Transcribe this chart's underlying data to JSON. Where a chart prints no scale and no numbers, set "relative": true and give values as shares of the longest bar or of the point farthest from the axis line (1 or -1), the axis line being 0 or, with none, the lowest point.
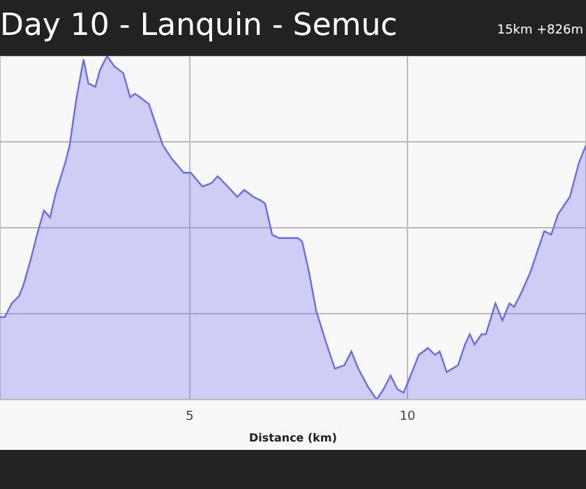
{
  "chart_data": {
    "type": "area",
    "title": "Day 10 - Lanquin - Semuc",
    "subtitle": "15km +826m",
    "xlabel": "Distance (km)",
    "relative": true,
    "grid": true,
    "xlim": [
      0.64,
      14.1
    ],
    "xticks": [
      5,
      10
    ],
    "x": [
      0.64,
      0.75,
      0.91,
      1.07,
      1.17,
      1.33,
      1.49,
      1.65,
      1.79,
      1.92,
      2.14,
      2.24,
      2.4,
      2.56,
      2.67,
      2.83,
      2.94,
      3.1,
      3.26,
      3.47,
      3.63,
      3.74,
      3.85,
      4.06,
      4.22,
      4.38,
      4.59,
      4.86,
      5.02,
      5.29,
      5.5,
      5.64,
      5.87,
      6.09,
      6.25,
      6.46,
      6.62,
      6.73,
      6.89,
      7.05,
      7.16,
      7.37,
      7.48,
      7.58,
      7.74,
      7.9,
      8.12,
      8.33,
      8.55,
      8.71,
      8.87,
      9.08,
      9.29,
      9.45,
      9.61,
      9.77,
      9.91,
      10.04,
      10.26,
      10.47,
      10.63,
      10.74,
      10.9,
      11.16,
      11.32,
      11.43,
      11.54,
      11.7,
      11.8,
      12.02,
      12.18,
      12.34,
      12.45,
      12.61,
      12.82,
      12.98,
      13.14,
      13.3,
      13.46,
      13.73,
      13.94,
      14.1
    ],
    "series": [
      {
        "color": "#6b6bf0",
        "values": [
          0.24,
          0.24,
          0.28,
          0.3,
          0.33,
          0.4,
          0.48,
          0.55,
          0.53,
          0.6,
          0.69,
          0.74,
          0.88,
          0.99,
          0.92,
          0.91,
          0.96,
          1.0,
          0.97,
          0.95,
          0.88,
          0.89,
          0.88,
          0.86,
          0.8,
          0.74,
          0.7,
          0.66,
          0.66,
          0.62,
          0.63,
          0.65,
          0.62,
          0.59,
          0.61,
          0.59,
          0.58,
          0.57,
          0.48,
          0.47,
          0.47,
          0.47,
          0.47,
          0.46,
          0.37,
          0.26,
          0.17,
          0.09,
          0.1,
          0.14,
          0.09,
          0.04,
          0.0,
          0.03,
          0.07,
          0.03,
          0.02,
          0.06,
          0.13,
          0.15,
          0.13,
          0.14,
          0.08,
          0.1,
          0.16,
          0.19,
          0.16,
          0.19,
          0.19,
          0.28,
          0.23,
          0.28,
          0.27,
          0.31,
          0.37,
          0.43,
          0.49,
          0.48,
          0.54,
          0.59,
          0.69,
          0.74
        ]
      }
    ]
  }
}
